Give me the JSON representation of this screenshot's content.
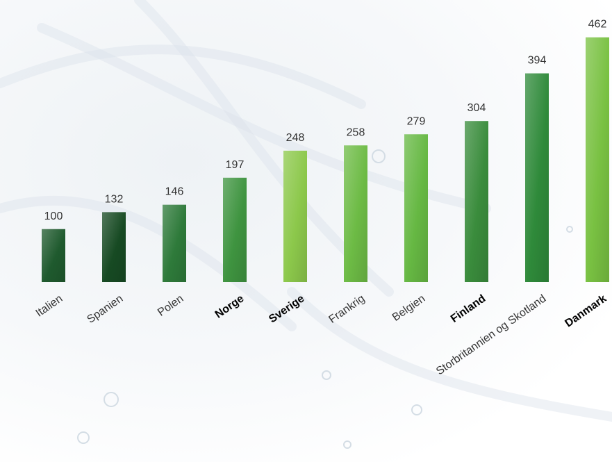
{
  "chart_data": {
    "type": "bar",
    "categories": [
      "Italien",
      "Spanien",
      "Polen",
      "Norge",
      "Sverige",
      "Frankrig",
      "Belgien",
      "Finland",
      "Storbritannien og Skotland",
      "Danmark"
    ],
    "values": [
      100,
      132,
      146,
      197,
      248,
      258,
      279,
      304,
      394,
      462
    ],
    "highlighted_categories": [
      "Norge",
      "Sverige",
      "Finland",
      "Danmark"
    ],
    "bar_colors": [
      "#1f5a2e",
      "#174a23",
      "#2e7a3a",
      "#3f9440",
      "#8cc84b",
      "#6dbb45",
      "#66b843",
      "#3a8c3c",
      "#2f8a3a",
      "#79c142"
    ],
    "ylim": [
      0,
      480
    ],
    "grid": false,
    "legend": "none",
    "title": "",
    "xlabel": "",
    "ylabel": ""
  }
}
